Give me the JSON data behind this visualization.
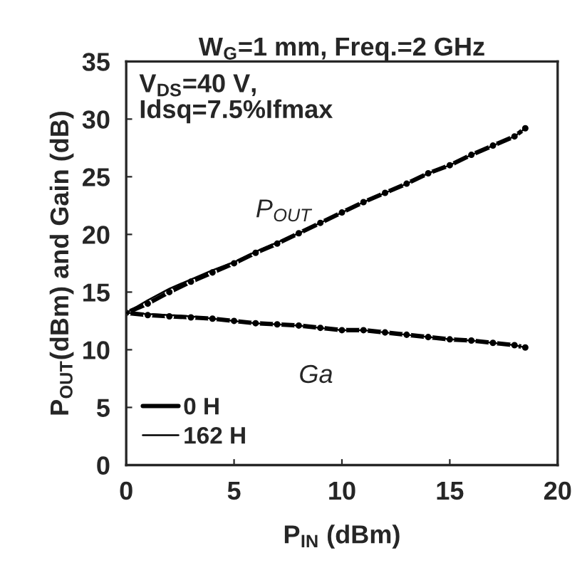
{
  "chart_data": {
    "type": "line",
    "title": "W$_{G}$=1 mm, Freq.=2 GHz",
    "xlabel": "P$_{IN}$ (dBm)",
    "ylabel": "P$_{OUT}$(dBm) and Gain (dB)",
    "x": [
      0,
      1,
      2,
      3,
      4,
      5,
      6,
      7,
      8,
      9,
      10,
      11,
      12,
      13,
      14,
      15,
      16,
      17,
      18,
      18.5
    ],
    "series": [
      {
        "name": "0 H",
        "color": "#000000",
        "line_style": "solid",
        "marker": "circle",
        "values": [
          13.2,
          14.0,
          15.0,
          15.9,
          16.7,
          17.5,
          18.4,
          19.2,
          20.1,
          21.0,
          21.9,
          22.8,
          23.6,
          24.4,
          25.3,
          26.0,
          26.9,
          27.7,
          28.5,
          29.2
        ]
      },
      {
        "name": "162 H",
        "color": "#000000",
        "line_style": "solid",
        "marker": "none",
        "values": [
          13.2,
          14.3,
          15.3,
          16.1,
          16.9,
          17.6,
          18.5,
          19.3,
          20.1,
          21.0,
          21.9,
          22.8,
          23.6,
          24.4,
          25.3,
          26.0,
          26.9,
          27.7,
          28.5,
          29.2
        ]
      },
      {
        "color": "#000000",
        "line_style": "solid",
        "marker": "circle",
        "values": [
          13.2,
          13.0,
          12.9,
          12.8,
          12.7,
          12.5,
          12.3,
          12.2,
          12.1,
          11.9,
          11.7,
          11.7,
          11.5,
          11.3,
          11.1,
          10.9,
          10.8,
          10.6,
          10.4,
          10.2
        ]
      },
      {
        "color": "#000000",
        "line_style": "solid",
        "marker": "none",
        "values": [
          13.2,
          13.1,
          13.0,
          12.9,
          12.7,
          12.5,
          12.3,
          12.2,
          12.1,
          11.9,
          11.7,
          11.7,
          11.5,
          11.3,
          11.1,
          10.9,
          10.8,
          10.6,
          10.4,
          10.2
        ]
      }
    ],
    "annotations": [
      "V$_{DS}$=40 V,\nIdsq=7.5%Ifmax",
      "P$_{OUT}$",
      "Ga"
    ],
    "xlim": [
      0,
      20
    ],
    "ylim": [
      0,
      35
    ],
    "xticks": [
      0,
      5,
      10,
      15,
      20
    ],
    "yticks": [
      0,
      5,
      10,
      15,
      20,
      25,
      30,
      35
    ],
    "legend": "bottom left",
    "grid": false
  }
}
